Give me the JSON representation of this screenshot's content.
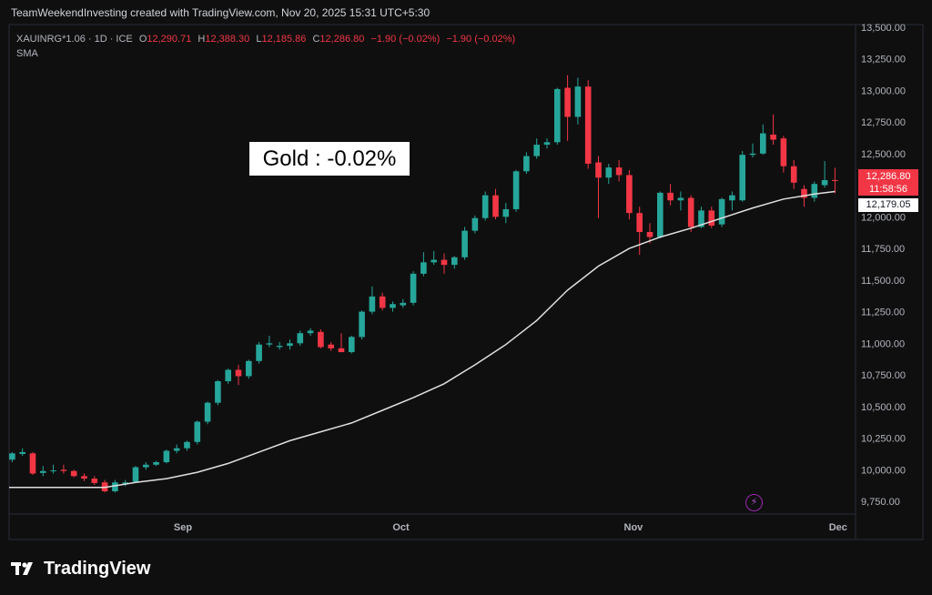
{
  "header": {
    "caption": "TeamWeekendInvesting created with TradingView.com, Nov 20, 2025 15:31 UTC+5:30"
  },
  "legend": {
    "symbol": "XAUINRG*1.06 · 1D · ICE",
    "open_label": "O",
    "open": "12,290.71",
    "high_label": "H",
    "high": "12,388.30",
    "low_label": "L",
    "low": "12,185.86",
    "close_label": "C",
    "close": "12,286.80",
    "change": "−1.90 (−0.02%)",
    "change2": "−1.90 (−0.02%)",
    "indicator": "SMA"
  },
  "overlay": {
    "text": "Gold : -0.02%"
  },
  "price_tags": {
    "close": "12,286.80",
    "countdown": "11:58:56",
    "sma": "12,179.05"
  },
  "brand": {
    "name": "TradingView"
  },
  "colors": {
    "up": "#26a69a",
    "down": "#f23645",
    "sma": "#e0e0e0",
    "background": "#0f0f0f",
    "alert": "#9c27b0"
  },
  "icons": {
    "alert": "lightning-alert-icon",
    "logo": "tradingview-logo-icon"
  },
  "chart_data": {
    "type": "candlestick",
    "ylim": [
      9650,
      13520
    ],
    "y_ticks": [
      13500,
      13250,
      13000,
      12750,
      12500,
      12250,
      12000,
      11750,
      11500,
      11250,
      11000,
      10750,
      10500,
      10250,
      10000,
      9750
    ],
    "y_tick_labels": [
      "13,500.00",
      "13,250.00",
      "13,000.00",
      "12,750.00",
      "12,500.00",
      "12,250.00",
      "12,000.00",
      "11,750.00",
      "11,500.00",
      "11,250.00",
      "11,000.00",
      "10,750.00",
      "10,500.00",
      "10,250.00",
      "10,000.00",
      "9,750.00"
    ],
    "x_ticks": [
      {
        "label": "Sep",
        "index": 16.6
      },
      {
        "label": "Oct",
        "index": 37.8
      },
      {
        "label": "Nov",
        "index": 60.4
      },
      {
        "label": "Dec",
        "index": 80.3
      }
    ],
    "x_range": [
      -0.3,
      82.0
    ],
    "grid": false,
    "candles": [
      {
        "o": 10080,
        "h": 10140,
        "l": 10060,
        "c": 10130
      },
      {
        "o": 10125,
        "h": 10170,
        "l": 10110,
        "c": 10140
      },
      {
        "o": 10130,
        "h": 10140,
        "l": 9960,
        "c": 9970
      },
      {
        "o": 9975,
        "h": 10030,
        "l": 9950,
        "c": 9990
      },
      {
        "o": 9990,
        "h": 10040,
        "l": 9970,
        "c": 9995
      },
      {
        "o": 10000,
        "h": 10040,
        "l": 9970,
        "c": 9990
      },
      {
        "o": 9990,
        "h": 10000,
        "l": 9940,
        "c": 9950
      },
      {
        "o": 9950,
        "h": 9970,
        "l": 9910,
        "c": 9930
      },
      {
        "o": 9930,
        "h": 9950,
        "l": 9880,
        "c": 9895
      },
      {
        "o": 9900,
        "h": 9920,
        "l": 9820,
        "c": 9830
      },
      {
        "o": 9830,
        "h": 9920,
        "l": 9820,
        "c": 9900
      },
      {
        "o": 9890,
        "h": 9920,
        "l": 9870,
        "c": 9900
      },
      {
        "o": 9905,
        "h": 10030,
        "l": 9900,
        "c": 10020
      },
      {
        "o": 10020,
        "h": 10060,
        "l": 10000,
        "c": 10040
      },
      {
        "o": 10040,
        "h": 10070,
        "l": 10030,
        "c": 10060
      },
      {
        "o": 10060,
        "h": 10160,
        "l": 10050,
        "c": 10150
      },
      {
        "o": 10150,
        "h": 10200,
        "l": 10130,
        "c": 10170
      },
      {
        "o": 10170,
        "h": 10230,
        "l": 10150,
        "c": 10220
      },
      {
        "o": 10220,
        "h": 10390,
        "l": 10200,
        "c": 10380
      },
      {
        "o": 10380,
        "h": 10540,
        "l": 10360,
        "c": 10530
      },
      {
        "o": 10530,
        "h": 10710,
        "l": 10510,
        "c": 10700
      },
      {
        "o": 10700,
        "h": 10800,
        "l": 10680,
        "c": 10790
      },
      {
        "o": 10790,
        "h": 10830,
        "l": 10670,
        "c": 10740
      },
      {
        "o": 10740,
        "h": 10870,
        "l": 10720,
        "c": 10860
      },
      {
        "o": 10860,
        "h": 11010,
        "l": 10840,
        "c": 10990
      },
      {
        "o": 10990,
        "h": 11060,
        "l": 10970,
        "c": 11000
      },
      {
        "o": 10970,
        "h": 11010,
        "l": 10950,
        "c": 10980
      },
      {
        "o": 10980,
        "h": 11030,
        "l": 10950,
        "c": 11000
      },
      {
        "o": 11000,
        "h": 11100,
        "l": 10980,
        "c": 11080
      },
      {
        "o": 11080,
        "h": 11120,
        "l": 11060,
        "c": 11100
      },
      {
        "o": 11090,
        "h": 11110,
        "l": 10960,
        "c": 10970
      },
      {
        "o": 10990,
        "h": 11010,
        "l": 10940,
        "c": 10960
      },
      {
        "o": 10960,
        "h": 11080,
        "l": 10930,
        "c": 10930
      },
      {
        "o": 10930,
        "h": 11060,
        "l": 10920,
        "c": 11050
      },
      {
        "o": 11050,
        "h": 11260,
        "l": 11030,
        "c": 11250
      },
      {
        "o": 11250,
        "h": 11450,
        "l": 11230,
        "c": 11370
      },
      {
        "o": 11370,
        "h": 11400,
        "l": 11260,
        "c": 11280
      },
      {
        "o": 11280,
        "h": 11330,
        "l": 11250,
        "c": 11310
      },
      {
        "o": 11300,
        "h": 11350,
        "l": 11280,
        "c": 11320
      },
      {
        "o": 11320,
        "h": 11570,
        "l": 11300,
        "c": 11550
      },
      {
        "o": 11550,
        "h": 11720,
        "l": 11530,
        "c": 11640
      },
      {
        "o": 11640,
        "h": 11730,
        "l": 11620,
        "c": 11660
      },
      {
        "o": 11660,
        "h": 11710,
        "l": 11550,
        "c": 11620
      },
      {
        "o": 11620,
        "h": 11690,
        "l": 11590,
        "c": 11680
      },
      {
        "o": 11680,
        "h": 11920,
        "l": 11660,
        "c": 11890
      },
      {
        "o": 11890,
        "h": 12010,
        "l": 11870,
        "c": 11990
      },
      {
        "o": 11990,
        "h": 12200,
        "l": 11970,
        "c": 12170
      },
      {
        "o": 12170,
        "h": 12220,
        "l": 11980,
        "c": 12000
      },
      {
        "o": 12000,
        "h": 12110,
        "l": 11950,
        "c": 12060
      },
      {
        "o": 12060,
        "h": 12370,
        "l": 12040,
        "c": 12360
      },
      {
        "o": 12360,
        "h": 12510,
        "l": 12340,
        "c": 12480
      },
      {
        "o": 12480,
        "h": 12620,
        "l": 12460,
        "c": 12570
      },
      {
        "o": 12570,
        "h": 12620,
        "l": 12540,
        "c": 12590
      },
      {
        "o": 12590,
        "h": 13020,
        "l": 12570,
        "c": 13010
      },
      {
        "o": 13020,
        "h": 13120,
        "l": 12600,
        "c": 12790
      },
      {
        "o": 12790,
        "h": 13100,
        "l": 12730,
        "c": 13030
      },
      {
        "o": 13030,
        "h": 13080,
        "l": 12380,
        "c": 12420
      },
      {
        "o": 12430,
        "h": 12480,
        "l": 11990,
        "c": 12310
      },
      {
        "o": 12310,
        "h": 12420,
        "l": 12260,
        "c": 12390
      },
      {
        "o": 12390,
        "h": 12450,
        "l": 12280,
        "c": 12330
      },
      {
        "o": 12330,
        "h": 12370,
        "l": 11980,
        "c": 12030
      },
      {
        "o": 12030,
        "h": 12080,
        "l": 11700,
        "c": 11880
      },
      {
        "o": 11880,
        "h": 11950,
        "l": 11790,
        "c": 11840
      },
      {
        "o": 11840,
        "h": 12200,
        "l": 11830,
        "c": 12190
      },
      {
        "o": 12190,
        "h": 12260,
        "l": 12090,
        "c": 12130
      },
      {
        "o": 12130,
        "h": 12200,
        "l": 12050,
        "c": 12150
      },
      {
        "o": 12150,
        "h": 12170,
        "l": 11880,
        "c": 11920
      },
      {
        "o": 11920,
        "h": 12080,
        "l": 11910,
        "c": 12050
      },
      {
        "o": 12050,
        "h": 12080,
        "l": 11910,
        "c": 11930
      },
      {
        "o": 11940,
        "h": 12150,
        "l": 11920,
        "c": 12140
      },
      {
        "o": 12130,
        "h": 12200,
        "l": 12050,
        "c": 12170
      },
      {
        "o": 12130,
        "h": 12520,
        "l": 12120,
        "c": 12490
      },
      {
        "o": 12490,
        "h": 12580,
        "l": 12470,
        "c": 12500
      },
      {
        "o": 12500,
        "h": 12730,
        "l": 12490,
        "c": 12660
      },
      {
        "o": 12650,
        "h": 12810,
        "l": 12570,
        "c": 12610
      },
      {
        "o": 12620,
        "h": 12640,
        "l": 12350,
        "c": 12400
      },
      {
        "o": 12400,
        "h": 12450,
        "l": 12220,
        "c": 12270
      },
      {
        "o": 12220,
        "h": 12250,
        "l": 12080,
        "c": 12150
      },
      {
        "o": 12150,
        "h": 12280,
        "l": 12120,
        "c": 12260
      },
      {
        "o": 12250,
        "h": 12440,
        "l": 12230,
        "c": 12290
      },
      {
        "o": 12290,
        "h": 12388,
        "l": 12186,
        "c": 12287
      }
    ],
    "sma": [
      [
        -0.3,
        9860
      ],
      [
        9,
        9860
      ],
      [
        12,
        9900
      ],
      [
        15,
        9930
      ],
      [
        18,
        9980
      ],
      [
        21,
        10050
      ],
      [
        24,
        10140
      ],
      [
        27,
        10230
      ],
      [
        30,
        10300
      ],
      [
        33,
        10370
      ],
      [
        36,
        10470
      ],
      [
        39,
        10570
      ],
      [
        42,
        10680
      ],
      [
        45,
        10830
      ],
      [
        48,
        10990
      ],
      [
        51,
        11180
      ],
      [
        54,
        11420
      ],
      [
        57,
        11610
      ],
      [
        60,
        11750
      ],
      [
        63,
        11840
      ],
      [
        66,
        11910
      ],
      [
        69,
        11990
      ],
      [
        72,
        12070
      ],
      [
        75,
        12140
      ],
      [
        78,
        12180
      ],
      [
        80,
        12200
      ]
    ]
  }
}
